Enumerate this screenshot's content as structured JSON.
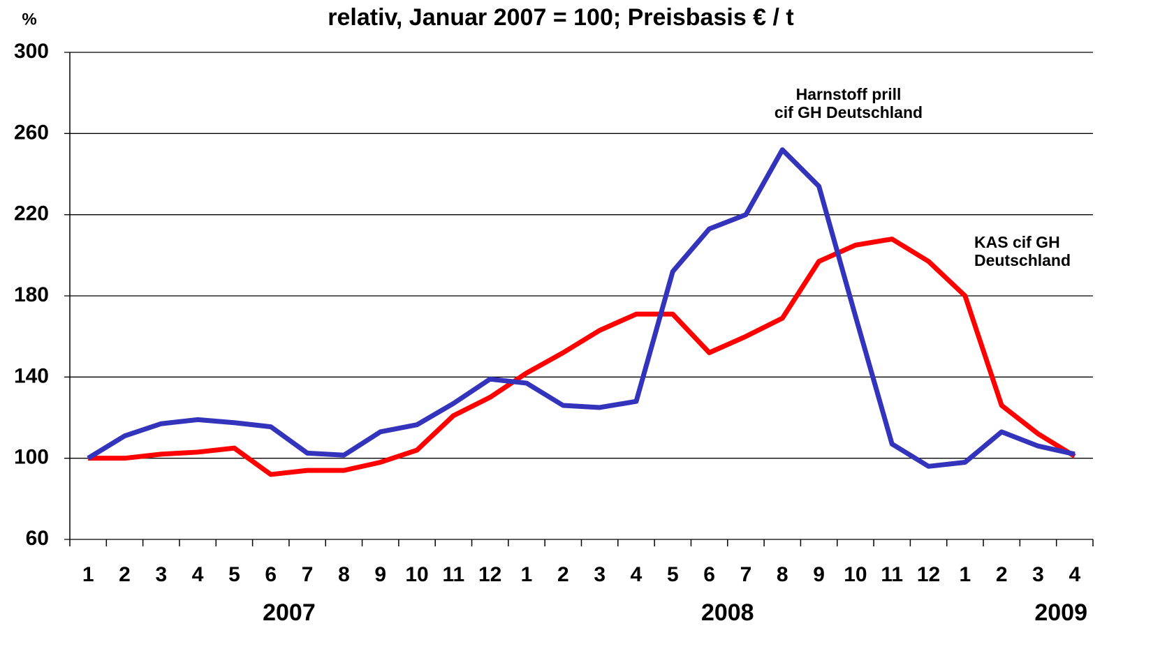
{
  "chart_data": {
    "type": "line",
    "title": "relativ, Januar 2007 = 100; Preisbasis € / t",
    "y_label": "%",
    "categories": [
      "1",
      "2",
      "3",
      "4",
      "5",
      "6",
      "7",
      "8",
      "9",
      "10",
      "11",
      "12",
      "1",
      "2",
      "3",
      "4",
      "5",
      "6",
      "7",
      "8",
      "9",
      "10",
      "11",
      "12",
      "1",
      "2",
      "3",
      "4"
    ],
    "years": [
      "2007",
      "2008",
      "2009"
    ],
    "series": [
      {
        "color": "#3333bb",
        "values": [
          100,
          111,
          117,
          119,
          117.5,
          115.5,
          102.5,
          101.5,
          113,
          116.5,
          127,
          139,
          137,
          126,
          125,
          128,
          192,
          213,
          220,
          252,
          234,
          170,
          107,
          96,
          98,
          113,
          106,
          102
        ]
      },
      {
        "color": "#ff0000",
        "values": [
          100,
          100,
          102,
          103,
          105,
          92,
          94,
          94,
          98,
          104,
          121,
          130,
          142,
          152,
          163,
          171,
          171,
          152,
          160,
          169,
          197,
          205,
          208,
          197,
          180,
          126,
          112,
          101
        ]
      }
    ],
    "annotations": [
      {
        "lines": [
          "Harnstoff prill",
          "cif GH Deutschland"
        ]
      },
      {
        "lines": [
          "KAS cif GH",
          "Deutschland"
        ]
      }
    ],
    "ylim": [
      60,
      300
    ],
    "yticks": [
      60,
      100,
      140,
      180,
      220,
      260,
      300
    ],
    "grid": true
  }
}
